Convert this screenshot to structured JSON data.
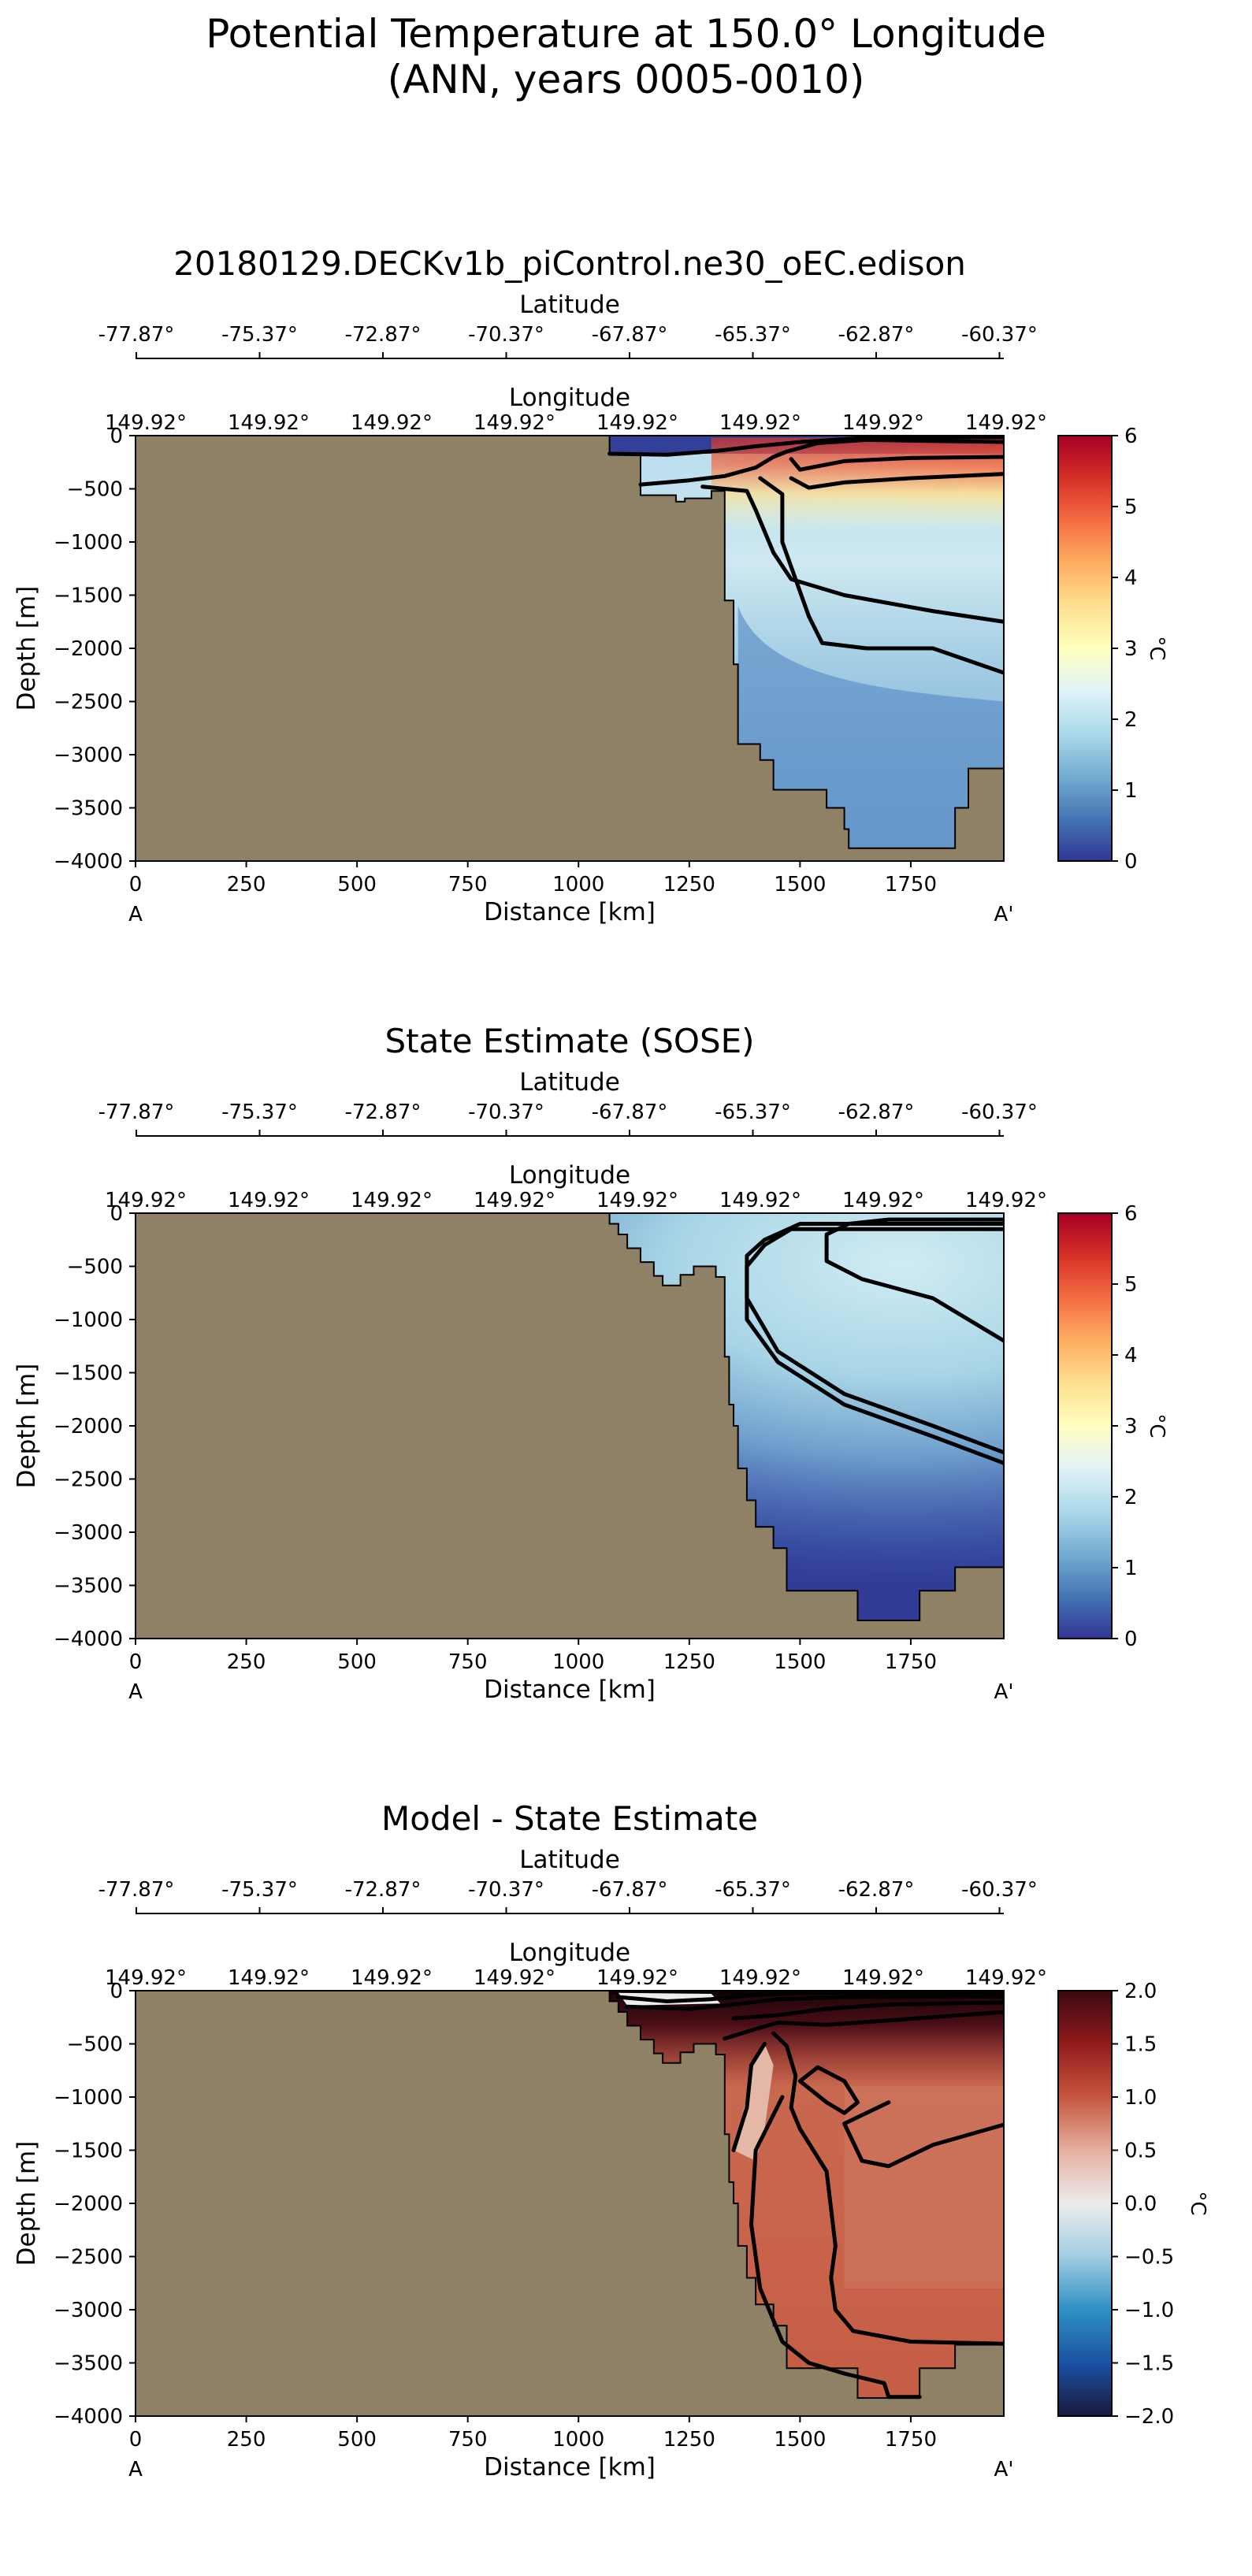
{
  "suptitle_line1": "Potential Temperature at 150.0° Longitude",
  "suptitle_line2": "(ANN, years 0005-0010)",
  "colors": {
    "land": "#8f8165",
    "contour": "#000000"
  },
  "chart_data": [
    {
      "type": "heatmap",
      "title": "20180129.DECKv1b_piControl.ne30_oEC.edison",
      "xlabel": "Distance [km]",
      "ylabel": "Depth [m]",
      "xlim": [
        0,
        1960
      ],
      "ylim": [
        -4000,
        0
      ],
      "xticks": [
        0,
        250,
        500,
        750,
        1000,
        1250,
        1500,
        1750
      ],
      "yticks": [
        0,
        -500,
        -1000,
        -1500,
        -2000,
        -2500,
        -3000,
        -3500,
        -4000
      ],
      "section_start_label": "A",
      "section_end_label": "A'",
      "lat_axis_label": "Latitude",
      "lat_ticks": [
        "-77.87°",
        "-75.37°",
        "-72.87°",
        "-70.37°",
        "-67.87°",
        "-65.37°",
        "-62.87°",
        "-60.37°"
      ],
      "lon_axis_label": "Longitude",
      "lon_ticks": [
        "149.92°",
        "149.92°",
        "149.92°",
        "149.92°",
        "149.92°",
        "149.92°",
        "149.92°",
        "149.92°"
      ],
      "colorbar": {
        "label": "°C",
        "min": 0,
        "max": 6,
        "ticks": [
          0,
          1,
          2,
          3,
          4,
          5,
          6
        ],
        "cmap": "RdYlBu_r"
      },
      "bathymetry": [
        [
          1070,
          0
        ],
        [
          1070,
          -170
        ],
        [
          1140,
          -170
        ],
        [
          1140,
          -560
        ],
        [
          1220,
          -560
        ],
        [
          1220,
          -620
        ],
        [
          1240,
          -620
        ],
        [
          1240,
          -590
        ],
        [
          1300,
          -590
        ],
        [
          1300,
          -520
        ],
        [
          1330,
          -520
        ],
        [
          1330,
          -1550
        ],
        [
          1350,
          -1550
        ],
        [
          1350,
          -2150
        ],
        [
          1360,
          -2150
        ],
        [
          1360,
          -2900
        ],
        [
          1410,
          -2900
        ],
        [
          1410,
          -3050
        ],
        [
          1440,
          -3050
        ],
        [
          1440,
          -3330
        ],
        [
          1560,
          -3330
        ],
        [
          1560,
          -3500
        ],
        [
          1600,
          -3500
        ],
        [
          1600,
          -3700
        ],
        [
          1610,
          -3700
        ],
        [
          1610,
          -3880
        ],
        [
          1850,
          -3880
        ],
        [
          1850,
          -3500
        ],
        [
          1880,
          -3500
        ],
        [
          1880,
          -3130
        ],
        [
          1960,
          -3130
        ]
      ],
      "contours": [
        [
          [
            1070,
            -170
          ],
          [
            1200,
            -180
          ],
          [
            1320,
            -140
          ],
          [
            1400,
            -100
          ],
          [
            1500,
            -60
          ],
          [
            1650,
            -20
          ],
          [
            1960,
            -15
          ]
        ],
        [
          [
            1140,
            -460
          ],
          [
            1250,
            -420
          ],
          [
            1330,
            -380
          ],
          [
            1400,
            -300
          ],
          [
            1440,
            -200
          ],
          [
            1470,
            -150
          ],
          [
            1540,
            -70
          ],
          [
            1650,
            -40
          ],
          [
            1800,
            -50
          ],
          [
            1960,
            -60
          ]
        ],
        [
          [
            1480,
            -220
          ],
          [
            1500,
            -320
          ],
          [
            1600,
            -240
          ],
          [
            1750,
            -210
          ],
          [
            1960,
            -200
          ]
        ],
        [
          [
            1480,
            -400
          ],
          [
            1520,
            -490
          ],
          [
            1600,
            -440
          ],
          [
            1750,
            -400
          ],
          [
            1960,
            -360
          ]
        ],
        [
          [
            1280,
            -480
          ],
          [
            1380,
            -520
          ],
          [
            1400,
            -700
          ],
          [
            1440,
            -1100
          ],
          [
            1480,
            -1350
          ],
          [
            1600,
            -1500
          ],
          [
            1800,
            -1650
          ],
          [
            1960,
            -1750
          ]
        ],
        [
          [
            1410,
            -400
          ],
          [
            1460,
            -550
          ],
          [
            1460,
            -1000
          ],
          [
            1520,
            -1700
          ],
          [
            1550,
            -1950
          ],
          [
            1650,
            -2000
          ],
          [
            1800,
            -2000
          ],
          [
            1960,
            -2230
          ]
        ]
      ]
    },
    {
      "type": "heatmap",
      "title": "State Estimate (SOSE)",
      "xlabel": "Distance [km]",
      "ylabel": "Depth [m]",
      "xlim": [
        0,
        1960
      ],
      "ylim": [
        -4000,
        0
      ],
      "xticks": [
        0,
        250,
        500,
        750,
        1000,
        1250,
        1500,
        1750
      ],
      "yticks": [
        0,
        -500,
        -1000,
        -1500,
        -2000,
        -2500,
        -3000,
        -3500,
        -4000
      ],
      "section_start_label": "A",
      "section_end_label": "A'",
      "lat_axis_label": "Latitude",
      "lat_ticks": [
        "-77.87°",
        "-75.37°",
        "-72.87°",
        "-70.37°",
        "-67.87°",
        "-65.37°",
        "-62.87°",
        "-60.37°"
      ],
      "lon_axis_label": "Longitude",
      "lon_ticks": [
        "149.92°",
        "149.92°",
        "149.92°",
        "149.92°",
        "149.92°",
        "149.92°",
        "149.92°",
        "149.92°"
      ],
      "colorbar": {
        "label": "°C",
        "min": 0,
        "max": 6,
        "ticks": [
          0,
          1,
          2,
          3,
          4,
          5,
          6
        ],
        "cmap": "RdYlBu_r"
      },
      "bathymetry": [
        [
          1070,
          0
        ],
        [
          1070,
          -100
        ],
        [
          1090,
          -100
        ],
        [
          1090,
          -200
        ],
        [
          1110,
          -200
        ],
        [
          1110,
          -330
        ],
        [
          1140,
          -330
        ],
        [
          1140,
          -460
        ],
        [
          1170,
          -460
        ],
        [
          1170,
          -590
        ],
        [
          1190,
          -590
        ],
        [
          1190,
          -680
        ],
        [
          1230,
          -680
        ],
        [
          1230,
          -580
        ],
        [
          1260,
          -580
        ],
        [
          1260,
          -500
        ],
        [
          1310,
          -500
        ],
        [
          1310,
          -600
        ],
        [
          1330,
          -600
        ],
        [
          1330,
          -1350
        ],
        [
          1340,
          -1350
        ],
        [
          1340,
          -1800
        ],
        [
          1350,
          -1800
        ],
        [
          1350,
          -2000
        ],
        [
          1360,
          -2000
        ],
        [
          1360,
          -2400
        ],
        [
          1380,
          -2400
        ],
        [
          1380,
          -2700
        ],
        [
          1400,
          -2700
        ],
        [
          1400,
          -2950
        ],
        [
          1440,
          -2950
        ],
        [
          1440,
          -3150
        ],
        [
          1470,
          -3150
        ],
        [
          1470,
          -3550
        ],
        [
          1630,
          -3550
        ],
        [
          1630,
          -3830
        ],
        [
          1770,
          -3830
        ],
        [
          1770,
          -3550
        ],
        [
          1850,
          -3550
        ],
        [
          1850,
          -3330
        ],
        [
          1960,
          -3330
        ]
      ],
      "contours": [
        [
          [
            1960,
            -60
          ],
          [
            1700,
            -60
          ],
          [
            1610,
            -100
          ],
          [
            1560,
            -200
          ],
          [
            1560,
            -450
          ],
          [
            1640,
            -620
          ],
          [
            1800,
            -800
          ],
          [
            1960,
            -1200
          ]
        ],
        [
          [
            1960,
            -100
          ],
          [
            1500,
            -100
          ],
          [
            1420,
            -250
          ],
          [
            1380,
            -400
          ],
          [
            1380,
            -800
          ],
          [
            1450,
            -1300
          ],
          [
            1600,
            -1700
          ],
          [
            1800,
            -2000
          ],
          [
            1960,
            -2250
          ]
        ],
        [
          [
            1960,
            -150
          ],
          [
            1480,
            -150
          ],
          [
            1420,
            -300
          ],
          [
            1380,
            -500
          ],
          [
            1380,
            -1000
          ],
          [
            1450,
            -1400
          ],
          [
            1600,
            -1800
          ],
          [
            1800,
            -2100
          ],
          [
            1960,
            -2350
          ]
        ]
      ]
    },
    {
      "type": "heatmap",
      "title": "Model - State Estimate",
      "xlabel": "Distance [km]",
      "ylabel": "Depth [m]",
      "xlim": [
        0,
        1960
      ],
      "ylim": [
        -4000,
        0
      ],
      "xticks": [
        0,
        250,
        500,
        750,
        1000,
        1250,
        1500,
        1750
      ],
      "yticks": [
        0,
        -500,
        -1000,
        -1500,
        -2000,
        -2500,
        -3000,
        -3500,
        -4000
      ],
      "section_start_label": "A",
      "section_end_label": "A'",
      "lat_axis_label": "Latitude",
      "lat_ticks": [
        "-77.87°",
        "-75.37°",
        "-72.87°",
        "-70.37°",
        "-67.87°",
        "-65.37°",
        "-62.87°",
        "-60.37°"
      ],
      "lon_axis_label": "Longitude",
      "lon_ticks": [
        "149.92°",
        "149.92°",
        "149.92°",
        "149.92°",
        "149.92°",
        "149.92°",
        "149.92°",
        "149.92°"
      ],
      "colorbar": {
        "label": "°C",
        "min": -2.0,
        "max": 2.0,
        "ticks": [
          "2.0",
          "1.5",
          "1.0",
          "0.5",
          "0.0",
          "−0.5",
          "−1.0",
          "−1.5",
          "−2.0"
        ],
        "cmap": "RdBu_r"
      },
      "bathymetry": [
        [
          1070,
          0
        ],
        [
          1070,
          -100
        ],
        [
          1090,
          -100
        ],
        [
          1090,
          -200
        ],
        [
          1110,
          -200
        ],
        [
          1110,
          -330
        ],
        [
          1140,
          -330
        ],
        [
          1140,
          -460
        ],
        [
          1170,
          -460
        ],
        [
          1170,
          -590
        ],
        [
          1190,
          -590
        ],
        [
          1190,
          -680
        ],
        [
          1230,
          -680
        ],
        [
          1230,
          -580
        ],
        [
          1260,
          -580
        ],
        [
          1260,
          -500
        ],
        [
          1310,
          -500
        ],
        [
          1310,
          -600
        ],
        [
          1330,
          -600
        ],
        [
          1330,
          -1350
        ],
        [
          1340,
          -1350
        ],
        [
          1340,
          -1800
        ],
        [
          1350,
          -1800
        ],
        [
          1350,
          -2000
        ],
        [
          1360,
          -2000
        ],
        [
          1360,
          -2400
        ],
        [
          1380,
          -2400
        ],
        [
          1380,
          -2700
        ],
        [
          1400,
          -2700
        ],
        [
          1400,
          -2950
        ],
        [
          1440,
          -2950
        ],
        [
          1440,
          -3150
        ],
        [
          1470,
          -3150
        ],
        [
          1470,
          -3550
        ],
        [
          1630,
          -3550
        ],
        [
          1630,
          -3830
        ],
        [
          1770,
          -3830
        ],
        [
          1770,
          -3550
        ],
        [
          1850,
          -3550
        ],
        [
          1850,
          -3330
        ],
        [
          1960,
          -3330
        ]
      ],
      "contours": [
        [
          [
            1090,
            -60
          ],
          [
            1200,
            -100
          ],
          [
            1300,
            -80
          ],
          [
            1400,
            -40
          ],
          [
            1500,
            -20
          ],
          [
            1960,
            -10
          ]
        ],
        [
          [
            1110,
            -150
          ],
          [
            1250,
            -170
          ],
          [
            1350,
            -130
          ],
          [
            1450,
            -80
          ],
          [
            1600,
            -60
          ],
          [
            1960,
            -55
          ]
        ],
        [
          [
            1350,
            -260
          ],
          [
            1450,
            -230
          ],
          [
            1560,
            -170
          ],
          [
            1700,
            -130
          ],
          [
            1960,
            -110
          ]
        ],
        [
          [
            1330,
            -450
          ],
          [
            1400,
            -360
          ],
          [
            1450,
            -300
          ],
          [
            1560,
            -320
          ],
          [
            1700,
            -280
          ],
          [
            1960,
            -200
          ]
        ],
        [
          [
            1440,
            -400
          ],
          [
            1470,
            -520
          ],
          [
            1490,
            -800
          ],
          [
            1480,
            -1100
          ],
          [
            1500,
            -1300
          ],
          [
            1530,
            -1500
          ],
          [
            1560,
            -1700
          ],
          [
            1580,
            -2400
          ],
          [
            1570,
            -2700
          ],
          [
            1580,
            -3000
          ],
          [
            1620,
            -3200
          ],
          [
            1750,
            -3300
          ],
          [
            1960,
            -3320
          ]
        ],
        [
          [
            1420,
            -500
          ],
          [
            1390,
            -700
          ],
          [
            1380,
            -1100
          ],
          [
            1350,
            -1500
          ]
        ],
        [
          [
            1460,
            -1000
          ],
          [
            1400,
            -1500
          ],
          [
            1390,
            -2200
          ],
          [
            1410,
            -2800
          ],
          [
            1460,
            -3300
          ],
          [
            1520,
            -3500
          ],
          [
            1600,
            -3600
          ],
          [
            1690,
            -3690
          ],
          [
            1700,
            -3820
          ],
          [
            1770,
            -3820
          ]
        ],
        [
          [
            1700,
            -1050
          ],
          [
            1600,
            -1250
          ],
          [
            1640,
            -1600
          ],
          [
            1700,
            -1650
          ],
          [
            1800,
            -1450
          ],
          [
            1960,
            -1260
          ]
        ],
        [
          [
            1500,
            -850
          ],
          [
            1560,
            -1050
          ],
          [
            1600,
            -1150
          ],
          [
            1630,
            -1050
          ],
          [
            1600,
            -850
          ],
          [
            1540,
            -720
          ],
          [
            1500,
            -850
          ]
        ]
      ]
    }
  ]
}
